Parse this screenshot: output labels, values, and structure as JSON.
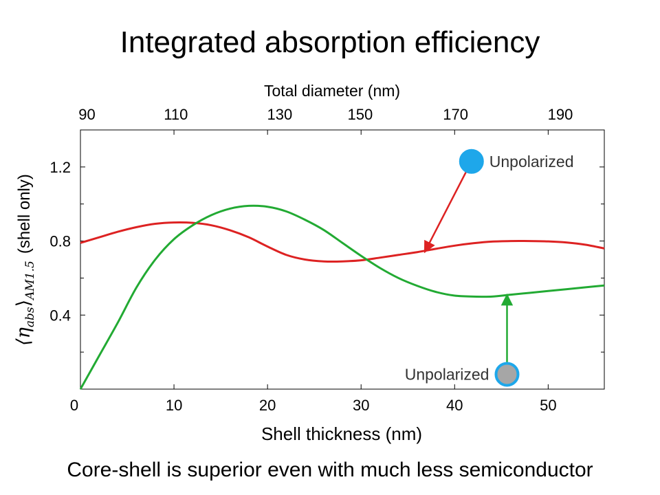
{
  "slide": {
    "title": "Integrated absorption efficiency",
    "caption": "Core-shell is superior even with much less semiconductor"
  },
  "chart_data": {
    "type": "line",
    "xlabel": "Shell thickness (nm)",
    "x2label": "Total diameter (nm)",
    "ylabel_math": "⟨η",
    "ylabel_sub1": "abs",
    "ylabel_mid": "⟩",
    "ylabel_sub2": "AM1.5",
    "ylabel_suffix": "(shell only)",
    "xlim": [
      0,
      56
    ],
    "ylim": [
      0,
      1.4
    ],
    "x_ticks": [
      0,
      10,
      20,
      30,
      40,
      50
    ],
    "y_ticks": [
      0.4,
      0.8,
      1.2
    ],
    "y_ticks_minor": [
      0.2,
      0.6,
      1.0
    ],
    "x2_ticks": [
      {
        "label": "90",
        "x": 0.7
      },
      {
        "label": "110",
        "x": 10.2
      },
      {
        "label": "130",
        "x": 21.3
      },
      {
        "label": "150",
        "x": 29.9
      },
      {
        "label": "170",
        "x": 40.1
      },
      {
        "label": "190",
        "x": 51.3
      }
    ],
    "series": [
      {
        "color": "#dd2222",
        "x": [
          0,
          2,
          4,
          6,
          8,
          10,
          12,
          14,
          16,
          18,
          20,
          22,
          24,
          26,
          28,
          30,
          32,
          34,
          36,
          38,
          40,
          42,
          44,
          46,
          48,
          50,
          52,
          54,
          56
        ],
        "y": [
          0.79,
          0.82,
          0.85,
          0.875,
          0.893,
          0.9,
          0.898,
          0.885,
          0.858,
          0.82,
          0.77,
          0.725,
          0.7,
          0.69,
          0.69,
          0.696,
          0.71,
          0.725,
          0.74,
          0.758,
          0.775,
          0.788,
          0.797,
          0.8,
          0.8,
          0.798,
          0.792,
          0.78,
          0.76
        ]
      },
      {
        "color": "#22aa33",
        "x": [
          0,
          2,
          4,
          6,
          8,
          10,
          12,
          14,
          16,
          18,
          20,
          22,
          24,
          26,
          28,
          30,
          32,
          34,
          36,
          38,
          40,
          42,
          44,
          46,
          48,
          50,
          52,
          54,
          56
        ],
        "y": [
          0.0,
          0.18,
          0.36,
          0.55,
          0.7,
          0.81,
          0.885,
          0.94,
          0.975,
          0.99,
          0.985,
          0.96,
          0.915,
          0.86,
          0.79,
          0.72,
          0.655,
          0.6,
          0.558,
          0.525,
          0.505,
          0.5,
          0.5,
          0.51,
          0.52,
          0.53,
          0.54,
          0.55,
          0.56
        ]
      }
    ],
    "annotations": [
      {
        "text": "Unpolarized",
        "marker_color": "#1ea7ea",
        "marker_fill": "#1ea7ea",
        "marker_x": 41.8,
        "marker_y": 1.23,
        "arrow_to_x": 36.8,
        "arrow_to_y": 0.74,
        "arrow_color": "#dd2222",
        "text_side": "right"
      },
      {
        "text": "Unpolarized",
        "marker_color": "#1ea7ea",
        "marker_fill": "#a6a6a6",
        "marker_x": 45.6,
        "marker_y": 0.08,
        "arrow_to_x": 45.6,
        "arrow_to_y": 0.51,
        "arrow_color": "#22aa33",
        "text_side": "left"
      }
    ]
  }
}
